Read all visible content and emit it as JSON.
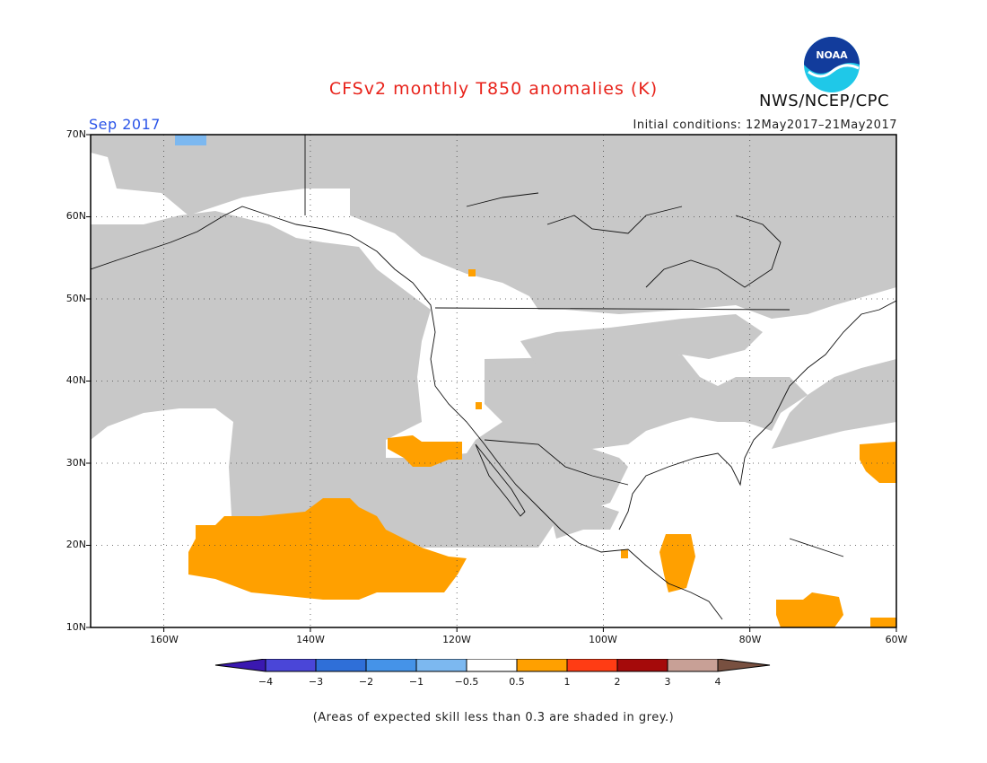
{
  "header": {
    "title": "CFSv2 monthly T850 anomalies (K)",
    "agency": "NWS/NCEP/CPC",
    "month": "Sep 2017",
    "initial_conditions": "Initial conditions: 12May2017–21May2017"
  },
  "logo": {
    "text": "NOAA",
    "icon": "noaa-logo"
  },
  "map": {
    "projection": "lat-lon",
    "lat_range": [
      10,
      70
    ],
    "lon_range": [
      -170,
      -60
    ],
    "lat_labels": [
      "70N",
      "60N",
      "50N",
      "40N",
      "30N",
      "20N",
      "10N"
    ],
    "lon_labels": [
      "160W",
      "140W",
      "120W",
      "100W",
      "80W",
      "60W"
    ],
    "grid": true
  },
  "colorbar": {
    "labels": [
      "−4",
      "−3",
      "−2",
      "−1",
      "−0.5",
      "0.5",
      "1",
      "2",
      "3",
      "4"
    ],
    "colors": [
      "#3a18b0",
      "#4a46d8",
      "#2f6fd8",
      "#4593e8",
      "#7cb8f0",
      "#ffffff",
      "#ffa000",
      "#ff3c14",
      "#a50a0a",
      "#c8a096",
      "#785040"
    ]
  },
  "footnote": "(Areas of expected skill less than 0.3 are shaded in grey.)",
  "colors": {
    "grey": "#c8c8c8",
    "orange": "#ffa000",
    "light_blue": "#7cb8f0",
    "title_red": "#e8231b",
    "month_blue": "#2a54e8"
  }
}
